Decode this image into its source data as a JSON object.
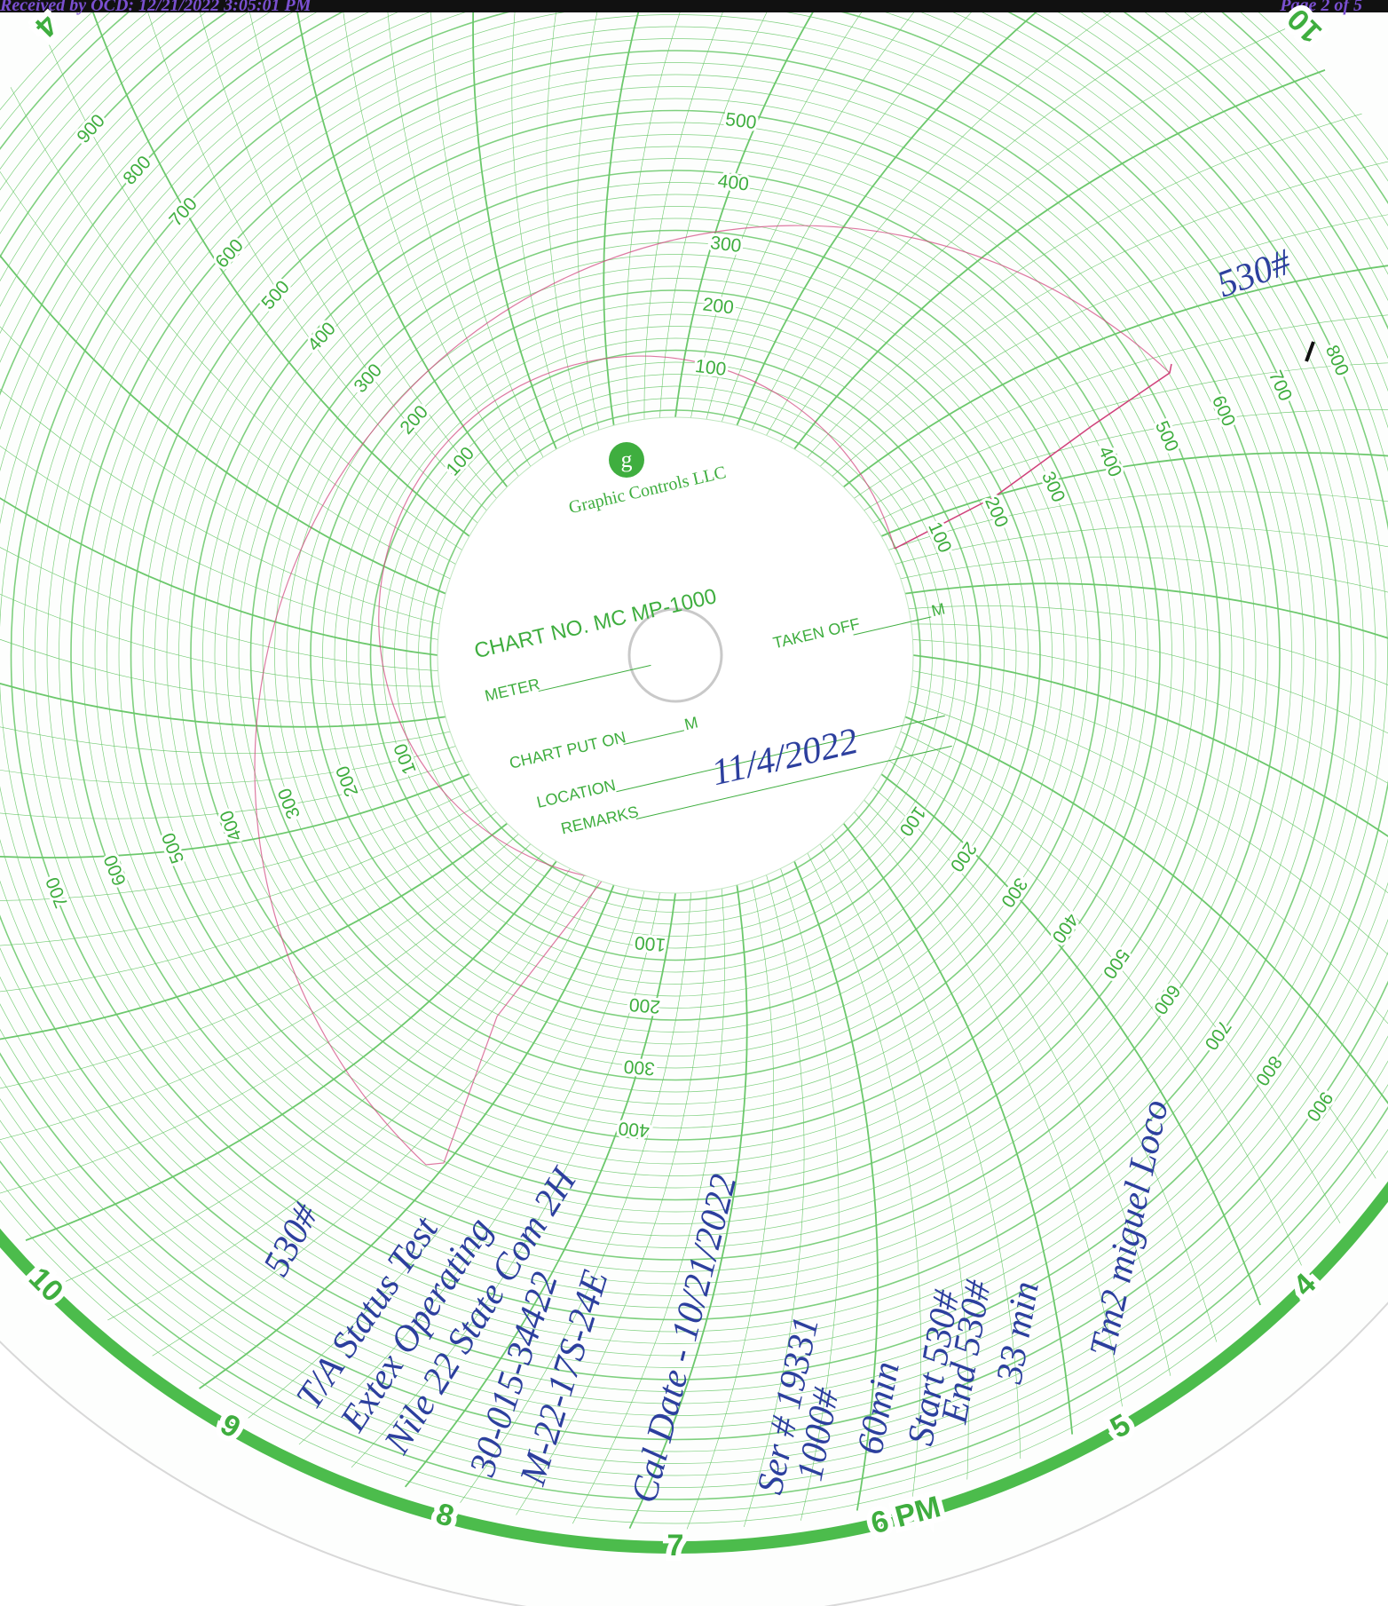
{
  "header": {
    "received": "Received by OCD: 12/21/2022 3:05:01 PM",
    "page": "Page 2 of 5"
  },
  "chart_label": {
    "logo": "g",
    "brand": "Graphic Controls LLC",
    "chart_no": "CHART NO. MC MP-1000",
    "meter": "METER",
    "taken_off": "TAKEN OFF",
    "taken_off_unit": "M",
    "put_on": "CHART PUT ON",
    "put_on_unit": "M",
    "location": "LOCATION",
    "remarks": "REMARKS",
    "date": "11/4/2022"
  },
  "scale": {
    "values": [
      100,
      200,
      300,
      400,
      500,
      600,
      700,
      800,
      900
    ]
  },
  "hours": [
    "4",
    "10",
    "10",
    "9",
    "8",
    "7",
    "6 PM",
    "5",
    "4"
  ],
  "notes": [
    "530#",
    "530#",
    "T/A Status Test",
    "Extex Operating",
    "Nile 22 State Com 2H",
    "30-015-34422",
    "M-22-17S-24E",
    "Cal Date - 10/21/2022",
    "Ser # 19331",
    "1000#",
    "60min",
    "Start 530#",
    "End 530#",
    "33 min",
    "Tm2 miguel Loco"
  ]
}
